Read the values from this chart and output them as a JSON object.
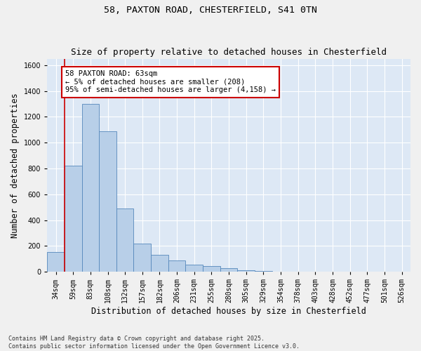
{
  "title_line1": "58, PAXTON ROAD, CHESTERFIELD, S41 0TN",
  "title_line2": "Size of property relative to detached houses in Chesterfield",
  "xlabel": "Distribution of detached houses by size in Chesterfield",
  "ylabel": "Number of detached properties",
  "categories": [
    "34sqm",
    "59sqm",
    "83sqm",
    "108sqm",
    "132sqm",
    "157sqm",
    "182sqm",
    "206sqm",
    "231sqm",
    "255sqm",
    "280sqm",
    "305sqm",
    "329sqm",
    "354sqm",
    "378sqm",
    "403sqm",
    "428sqm",
    "452sqm",
    "477sqm",
    "501sqm",
    "526sqm"
  ],
  "values": [
    155,
    820,
    1300,
    1090,
    490,
    220,
    130,
    90,
    55,
    45,
    30,
    10,
    5,
    3,
    0,
    0,
    0,
    0,
    0,
    0,
    0
  ],
  "bar_color": "#b8cfe8",
  "bar_edge_color": "#5588bb",
  "background_color": "#dde8f5",
  "grid_color": "#ffffff",
  "annotation_line1": "58 PAXTON ROAD: 63sqm",
  "annotation_line2": "← 5% of detached houses are smaller (208)",
  "annotation_line3": "95% of semi-detached houses are larger (4,158) →",
  "annotation_box_color": "#ffffff",
  "annotation_box_edge_color": "#cc0000",
  "red_line_x": 0.5,
  "ylim": [
    0,
    1650
  ],
  "yticks": [
    0,
    200,
    400,
    600,
    800,
    1000,
    1200,
    1400,
    1600
  ],
  "footer_text": "Contains HM Land Registry data © Crown copyright and database right 2025.\nContains public sector information licensed under the Open Government Licence v3.0.",
  "title_fontsize": 9.5,
  "subtitle_fontsize": 9,
  "tick_fontsize": 7,
  "label_fontsize": 8.5,
  "annotation_fontsize": 7.5,
  "footer_fontsize": 6
}
